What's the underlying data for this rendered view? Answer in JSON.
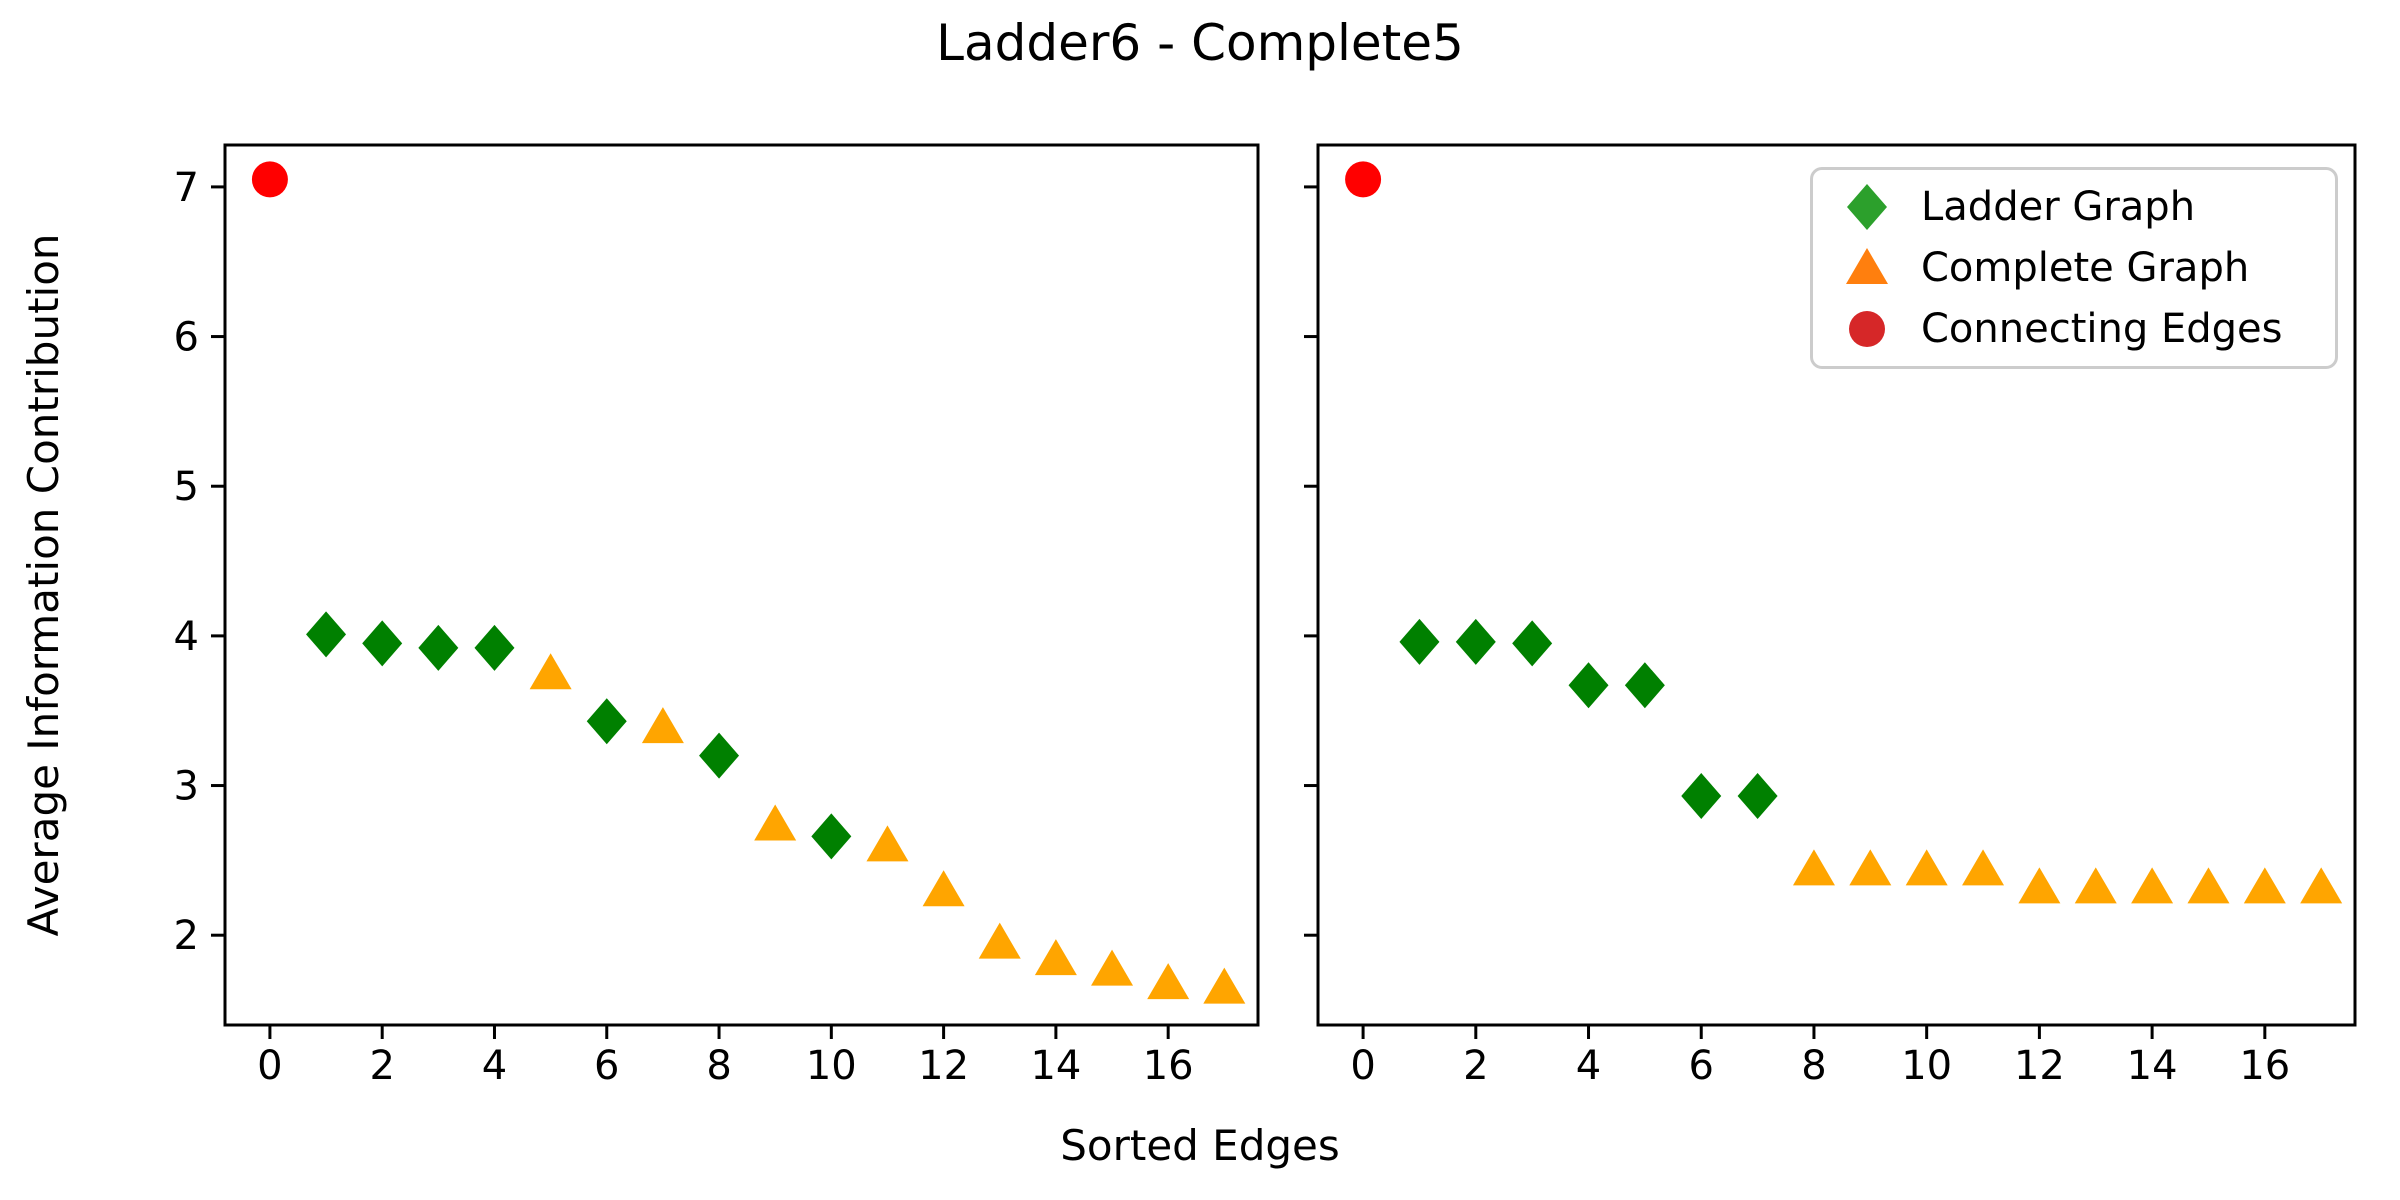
{
  "title": "Ladder6 - Complete5",
  "axes": {
    "ylabel": "Average Information Contribution",
    "xlabel": "Sorted Edges"
  },
  "legend": {
    "items": [
      {
        "label": "Ladder Graph",
        "marker": "diamond",
        "color": "#2ca02c"
      },
      {
        "label": "Complete Graph",
        "marker": "triangle",
        "color": "#ff7f0e"
      },
      {
        "label": "Connecting Edges",
        "marker": "circle",
        "color": "#d62728"
      }
    ]
  },
  "chart_data": [
    {
      "type": "scatter",
      "panel": "left",
      "x_ticks": [
        0,
        2,
        4,
        6,
        8,
        10,
        12,
        14,
        16
      ],
      "y_ticks": [
        7,
        6,
        5,
        4,
        3,
        2
      ],
      "show_y_tick_labels": true,
      "xlim": [
        -0.8,
        17.6
      ],
      "ylim": [
        1.4,
        7.28
      ],
      "grid": false,
      "series": [
        {
          "name": "Ladder Graph",
          "marker": "diamond",
          "color": "#008000",
          "points": [
            [
              1,
              4.01
            ],
            [
              2,
              3.95
            ],
            [
              3,
              3.92
            ],
            [
              4,
              3.92
            ],
            [
              6,
              3.43
            ],
            [
              8,
              3.2
            ],
            [
              10,
              2.66
            ]
          ]
        },
        {
          "name": "Complete Graph",
          "marker": "triangle",
          "color": "#ffa500",
          "points": [
            [
              5,
              3.75
            ],
            [
              7,
              3.39
            ],
            [
              9,
              2.74
            ],
            [
              11,
              2.6
            ],
            [
              12,
              2.3
            ],
            [
              13,
              1.95
            ],
            [
              14,
              1.84
            ],
            [
              15,
              1.77
            ],
            [
              16,
              1.68
            ],
            [
              17,
              1.65
            ]
          ]
        },
        {
          "name": "Connecting Edges",
          "marker": "circle",
          "color": "#ff0000",
          "points": [
            [
              0,
              7.05
            ]
          ]
        }
      ]
    },
    {
      "type": "scatter",
      "panel": "right",
      "x_ticks": [
        0,
        2,
        4,
        6,
        8,
        10,
        12,
        14,
        16
      ],
      "y_ticks": [
        7,
        6,
        5,
        4,
        3,
        2
      ],
      "show_y_tick_labels": false,
      "xlim": [
        -0.8,
        17.6
      ],
      "ylim": [
        1.4,
        7.28
      ],
      "grid": false,
      "series": [
        {
          "name": "Ladder Graph",
          "marker": "diamond",
          "color": "#008000",
          "points": [
            [
              1,
              3.96
            ],
            [
              2,
              3.96
            ],
            [
              3,
              3.95
            ],
            [
              4,
              3.67
            ],
            [
              5,
              3.67
            ],
            [
              6,
              2.93
            ],
            [
              7,
              2.93
            ]
          ]
        },
        {
          "name": "Complete Graph",
          "marker": "triangle",
          "color": "#ffa500",
          "points": [
            [
              8,
              2.44
            ],
            [
              9,
              2.44
            ],
            [
              10,
              2.44
            ],
            [
              11,
              2.44
            ],
            [
              12,
              2.32
            ],
            [
              13,
              2.32
            ],
            [
              14,
              2.32
            ],
            [
              15,
              2.32
            ],
            [
              16,
              2.32
            ],
            [
              17,
              2.32
            ]
          ]
        },
        {
          "name": "Connecting Edges",
          "marker": "circle",
          "color": "#ff0000",
          "points": [
            [
              0,
              7.05
            ]
          ]
        }
      ]
    }
  ]
}
